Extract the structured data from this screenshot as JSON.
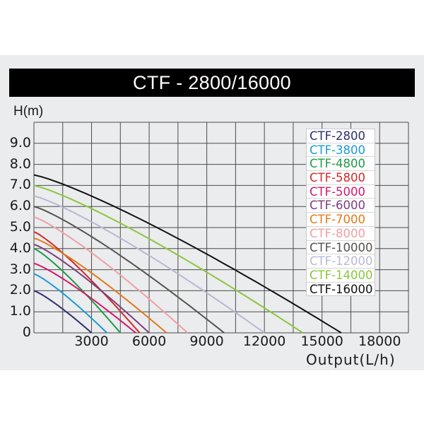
{
  "title": "CTF - 2800/16000",
  "axes": {
    "y_label": "H(m)",
    "x_label": "Output(L/h)",
    "y_ticks": [
      "9.0",
      "8.0",
      "7.0",
      "6.0",
      "5.0",
      "4.0",
      "3.0",
      "2.0",
      "1.0",
      "0"
    ],
    "x_ticks": [
      "3000",
      "6000",
      "9000",
      "12000",
      "15000",
      "18000"
    ]
  },
  "chart_data": {
    "type": "line",
    "title": "CTF - 2800/16000",
    "xlabel": "Output(L/h)",
    "ylabel": "H(m)",
    "xlim": [
      0,
      19500
    ],
    "ylim": [
      0,
      10
    ],
    "grid": true,
    "legend_position": "upper right (inside)",
    "x_ticks": [
      3000,
      6000,
      9000,
      12000,
      15000,
      18000
    ],
    "y_ticks": [
      0,
      1.0,
      2.0,
      3.0,
      4.0,
      5.0,
      6.0,
      7.0,
      8.0,
      9.0
    ],
    "series": [
      {
        "name": "CTF-2800",
        "color": "#2e2f6e",
        "max_head": 2.0,
        "max_flow": 3000,
        "points": [
          [
            0,
            2.0
          ],
          [
            1500,
            1.13
          ],
          [
            3000,
            0
          ]
        ]
      },
      {
        "name": "CTF-3800",
        "color": "#1c9ad6",
        "max_head": 2.8,
        "max_flow": 3800,
        "points": [
          [
            0,
            2.8
          ],
          [
            1500,
            1.83
          ],
          [
            3000,
            0.64
          ],
          [
            3800,
            0
          ]
        ]
      },
      {
        "name": "CTF-4800",
        "color": "#1f9a48",
        "max_head": 4.0,
        "max_flow": 4500,
        "points": [
          [
            0,
            4.0
          ],
          [
            1500,
            2.72
          ],
          [
            3000,
            1.24
          ],
          [
            4500,
            0
          ]
        ]
      },
      {
        "name": "CTF-5800",
        "color": "#d12a2a",
        "max_head": 4.8,
        "max_flow": 5500,
        "points": [
          [
            0,
            4.8
          ],
          [
            1500,
            3.44
          ],
          [
            3000,
            1.95
          ],
          [
            4500,
            0.64
          ],
          [
            5500,
            0
          ]
        ]
      },
      {
        "name": "CTF-5000",
        "color": "#d1186e",
        "max_head": 3.3,
        "max_flow": 5300,
        "points": [
          [
            0,
            3.3
          ],
          [
            1500,
            2.4
          ],
          [
            3000,
            1.43
          ],
          [
            4500,
            0.43
          ],
          [
            5300,
            0
          ]
        ]
      },
      {
        "name": "CTF-6000",
        "color": "#7a3d7e",
        "max_head": 4.2,
        "max_flow": 6000,
        "points": [
          [
            0,
            4.2
          ],
          [
            1500,
            3.1
          ],
          [
            3000,
            1.91
          ],
          [
            4500,
            0.85
          ],
          [
            6000,
            0
          ]
        ]
      },
      {
        "name": "CTF-7000",
        "color": "#e07a1c",
        "max_head": 4.5,
        "max_flow": 6900,
        "points": [
          [
            0,
            4.5
          ],
          [
            1500,
            3.44
          ],
          [
            3000,
            2.33
          ],
          [
            4500,
            1.3
          ],
          [
            6000,
            0.34
          ],
          [
            6900,
            0
          ]
        ]
      },
      {
        "name": "CTF-8000",
        "color": "#eea0a4",
        "max_head": 5.5,
        "max_flow": 8000,
        "points": [
          [
            0,
            5.5
          ],
          [
            1500,
            4.32
          ],
          [
            3000,
            3.1
          ],
          [
            4500,
            1.95
          ],
          [
            6000,
            0.86
          ],
          [
            8000,
            0
          ]
        ]
      },
      {
        "name": "CTF-10000",
        "color": "#555350",
        "max_head": 6.0,
        "max_flow": 9900,
        "points": [
          [
            0,
            6.0
          ],
          [
            3000,
            3.84
          ],
          [
            6000,
            1.85
          ],
          [
            9000,
            0.3
          ],
          [
            9900,
            0
          ]
        ]
      },
      {
        "name": "CTF-12000",
        "color": "#b8b8d6",
        "max_head": 6.5,
        "max_flow": 12000,
        "points": [
          [
            0,
            6.5
          ],
          [
            3000,
            4.9
          ],
          [
            6000,
            3.3
          ],
          [
            9000,
            1.6
          ],
          [
            12000,
            0
          ]
        ]
      },
      {
        "name": "CTF-14000",
        "color": "#8cc63f",
        "max_head": 7.0,
        "max_flow": 14000,
        "points": [
          [
            0,
            7.0
          ],
          [
            3000,
            5.6
          ],
          [
            6000,
            4.2
          ],
          [
            9000,
            2.7
          ],
          [
            12000,
            1.0
          ],
          [
            14000,
            0
          ]
        ]
      },
      {
        "name": "CTF-16000",
        "color": "#111111",
        "max_head": 7.5,
        "max_flow": 16000,
        "points": [
          [
            0,
            7.5
          ],
          [
            3000,
            6.3
          ],
          [
            6000,
            5.0
          ],
          [
            9000,
            3.74
          ],
          [
            12000,
            2.19
          ],
          [
            15000,
            0.6
          ],
          [
            16000,
            0
          ]
        ]
      }
    ]
  }
}
